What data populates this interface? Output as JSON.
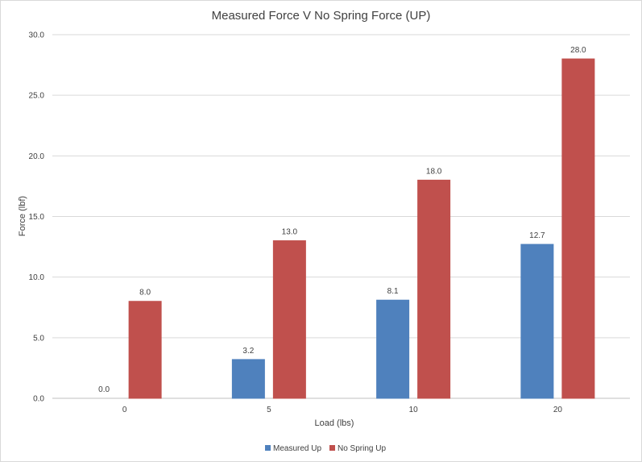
{
  "chart_data": {
    "type": "bar",
    "title": "Measured Force V No Spring Force (UP)",
    "xlabel": "Load (lbs)",
    "ylabel": "Force (lbf)",
    "categories": [
      "0",
      "5",
      "10",
      "20"
    ],
    "series": [
      {
        "name": "Measured Up",
        "values": [
          0.0,
          3.2,
          8.1,
          12.7
        ],
        "labels": [
          "0.0",
          "3.2",
          "8.1",
          "12.7"
        ],
        "color": "#4f81bd"
      },
      {
        "name": "No Spring Up",
        "values": [
          8.0,
          13.0,
          18.0,
          28.0
        ],
        "labels": [
          "8.0",
          "13.0",
          "18.0",
          "28.0"
        ],
        "color": "#c0504d"
      }
    ],
    "ylim": [
      0,
      30
    ],
    "yticks": [
      "0.0",
      "5.0",
      "10.0",
      "15.0",
      "20.0",
      "25.0",
      "30.0"
    ],
    "grid": true,
    "legend_position": "bottom"
  }
}
